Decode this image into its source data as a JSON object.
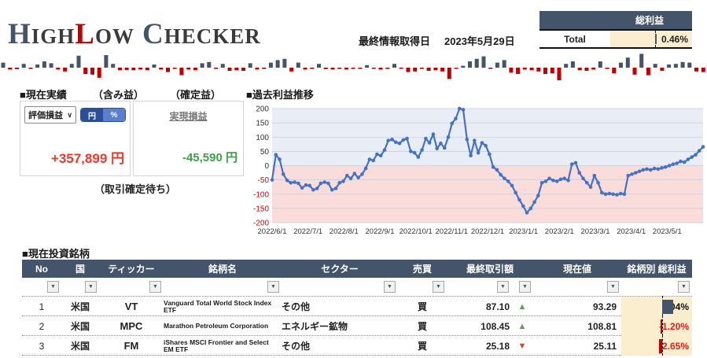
{
  "header": {
    "logo": {
      "p1": "H",
      "p2": "IGH",
      "p3": "L",
      "p4": "OW",
      "p5": "C",
      "p6": "HECKER"
    },
    "date_label": "最終情報取得日",
    "date_value": "2023年5月29日",
    "total_table": {
      "header": "総利益",
      "row_label": "Total",
      "value": "0.46%",
      "value_num": 0.46
    }
  },
  "current_results": {
    "section_title": "■現在実績",
    "unrealized_label": "（含み益）",
    "realized_label": "（確定益）",
    "dropdown_value": "評価損益",
    "toggle_yen": "円",
    "toggle_pct": "%",
    "unrealized_value": "+357,899 円",
    "realized_link": "実現損益",
    "realized_value": "-45,590 円",
    "pending_label": "（取引確定待ち）"
  },
  "icons": {
    "filter_arrow": "▼",
    "dropdown_caret": "∨",
    "up_arrow": "▲",
    "down_arrow": "▼"
  },
  "colors": {
    "navy": "#44546A",
    "bar_red": "#C00000",
    "line_blue": "#4472C4",
    "neg_red": "#E02020",
    "beige": "#FAEECF"
  },
  "chart_data": [
    {
      "type": "bar",
      "name": "daily-profit-sparkline",
      "title": "",
      "xlabel": "",
      "ylabel": "",
      "values": [
        0.4,
        -0.15,
        -0.12,
        0.3,
        -0.1,
        0.25,
        0.5,
        0.35,
        -0.15,
        -0.3,
        0.3,
        0.95,
        -0.5,
        -0.55,
        -0.8,
        1.0,
        0.3,
        -0.2,
        -0.18,
        -0.2,
        -0.15,
        -0.2,
        0.25,
        -0.15,
        -0.35,
        -0.1,
        -0.6,
        -0.15,
        -0.2,
        0.35,
        0.45,
        -0.1,
        0.3,
        -0.25,
        -0.2,
        -0.25,
        0.35,
        -0.15,
        -0.1,
        0.4,
        0.6,
        0.7,
        -0.3,
        0.4,
        -0.15,
        -0.1,
        0.3,
        -0.12,
        -0.15,
        -0.1,
        -0.15,
        -0.1,
        -0.1,
        0.2,
        -0.05,
        -0.15,
        -0.1,
        0.3,
        -0.05,
        -0.35,
        -0.3,
        -0.1,
        -0.25,
        -0.2,
        -0.3,
        -0.9,
        -0.05,
        0.15,
        0.5,
        0.7,
        0.9,
        -0.1,
        0.4,
        0.6,
        -0.4,
        -0.5,
        -0.15,
        -0.2,
        -0.3,
        -0.5,
        -0.45,
        -1.0,
        0.3,
        0.5,
        -0.2,
        -0.25,
        -0.15,
        0.5,
        -0.1,
        -0.45,
        0.4,
        0.8,
        -0.55,
        1.1,
        -0.6,
        0.3,
        -0.25,
        0.25,
        0.3,
        0.45,
        0.4,
        -0.3,
        -0.35
      ]
    },
    {
      "type": "line",
      "title": "■過去利益推移",
      "xlabel": "",
      "ylabel": "",
      "ylim": [
        -200,
        200
      ],
      "ytick_step": 50,
      "grid": true,
      "legend": "none",
      "bg_above_zero": "#E9EEF6",
      "bg_below_zero": "#FADCDB",
      "line_color": "#4472C4",
      "x_ticks": [
        "2022/6/1",
        "2022/7/1",
        "2022/8/1",
        "2022/9/1",
        "2022/10/1",
        "2022/11/1",
        "2022/12/1",
        "2023/1/1",
        "2023/2/1",
        "2023/3/1",
        "2023/4/1",
        "2023/5/1"
      ],
      "values": [
        -50,
        38,
        22,
        -30,
        -52,
        -60,
        -58,
        -62,
        -78,
        -68,
        -70,
        -85,
        -80,
        -62,
        -58,
        -62,
        -85,
        -80,
        -60,
        -55,
        -35,
        -45,
        -28,
        -42,
        -30,
        -10,
        22,
        18,
        40,
        35,
        55,
        88,
        92,
        82,
        78,
        90,
        95,
        50,
        45,
        30,
        55,
        95,
        80,
        110,
        60,
        78,
        62,
        100,
        148,
        165,
        200,
        196,
        92,
        35,
        88,
        45,
        80,
        70,
        40,
        -5,
        -15,
        -32,
        -45,
        -55,
        -70,
        -95,
        -120,
        -142,
        -165,
        -150,
        -128,
        -105,
        -60,
        -55,
        -45,
        -52,
        -55,
        -48,
        -45,
        -52,
        5,
        10,
        -25,
        -45,
        -60,
        -75,
        -35,
        -60,
        -95,
        -100,
        -98,
        -100,
        -102,
        -98,
        -100,
        -35,
        -30,
        -25,
        -20,
        -15,
        -12,
        -15,
        -10,
        -12,
        -8,
        -5,
        0,
        5,
        8,
        15,
        12,
        22,
        30,
        38,
        52,
        66
      ]
    }
  ],
  "holdings": {
    "section_title": "■現在投資銘柄",
    "columns": [
      "No",
      "国",
      "ティッカー",
      "銘柄名",
      "セクター",
      "売買",
      "最終取引額",
      "現在値",
      "銘柄別 総利益"
    ],
    "rows": [
      {
        "no": "1",
        "country": "米国",
        "ticker": "VT",
        "name": "Vanguard Total World Stock Index ETF",
        "sector": "その他",
        "side": "買",
        "last_price": "87.10",
        "last_dir": "up",
        "current_price": "93.29",
        "profit": "8.04%",
        "profit_value": 8.04
      },
      {
        "no": "2",
        "country": "米国",
        "ticker": "MPC",
        "name": "Marathon Petroleum Corporation",
        "sector": "エネルギー鉱物",
        "side": "買",
        "last_price": "108.45",
        "last_dir": "up",
        "current_price": "108.81",
        "profit": "-1.20%",
        "profit_value": -1.2
      },
      {
        "no": "3",
        "country": "米国",
        "ticker": "FM",
        "name": "iShares MSCI Frontier and Select EM ETF",
        "sector": "その他",
        "side": "買",
        "last_price": "25.18",
        "last_dir": "down",
        "current_price": "25.11",
        "profit": "-2.65%",
        "profit_value": -2.65
      }
    ]
  }
}
